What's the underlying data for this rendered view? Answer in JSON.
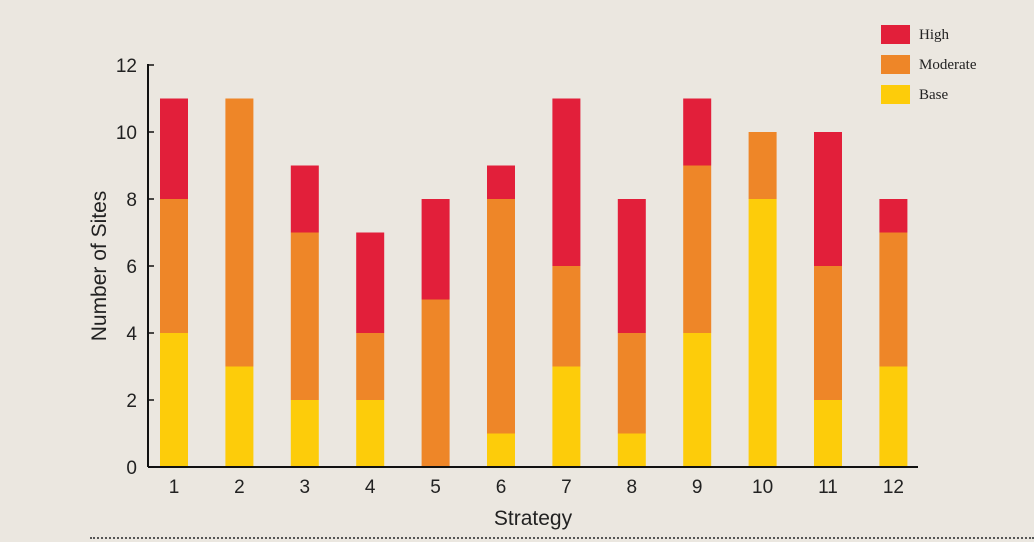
{
  "chart_data": {
    "type": "bar",
    "stacked": true,
    "title": "",
    "xlabel": "Strategy",
    "ylabel": "Number of Sites",
    "categories": [
      "1",
      "2",
      "3",
      "4",
      "5",
      "6",
      "7",
      "8",
      "9",
      "10",
      "11",
      "12"
    ],
    "yticks": [
      "0",
      "2",
      "4",
      "6",
      "8",
      "10",
      "12"
    ],
    "ylim": [
      0,
      12
    ],
    "grid": false,
    "legend_position": "top-right",
    "series": [
      {
        "name": "Base",
        "color": "#fdcc0a",
        "values": [
          4,
          3,
          2,
          2,
          0,
          1,
          3,
          1,
          4,
          8,
          2,
          3
        ]
      },
      {
        "name": "Moderate",
        "color": "#ee8628",
        "values": [
          4,
          8,
          5,
          2,
          5,
          7,
          3,
          3,
          5,
          2,
          4,
          4
        ]
      },
      {
        "name": "High",
        "color": "#e21f3a",
        "values": [
          3,
          0,
          2,
          3,
          3,
          1,
          5,
          4,
          2,
          0,
          4,
          1
        ]
      }
    ],
    "legend": [
      "High",
      "Moderate",
      "Base"
    ]
  }
}
